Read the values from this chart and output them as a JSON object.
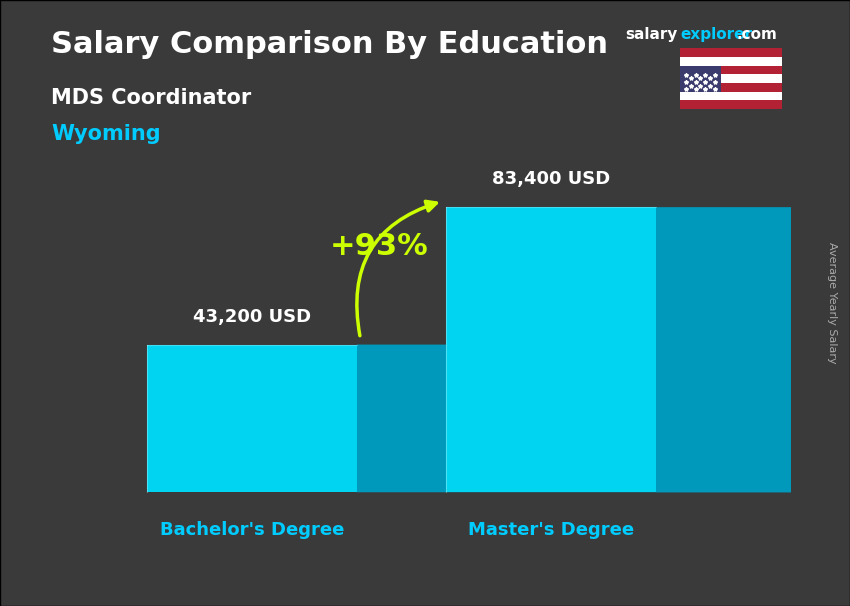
{
  "title_main": "Salary Comparison By Education",
  "title_sub": "MDS Coordinator",
  "title_location": "Wyoming",
  "site_text_salary": "salary",
  "site_text_explorer": "explorer",
  "site_text_com": ".com",
  "categories": [
    "Bachelor's Degree",
    "Master's Degree"
  ],
  "values": [
    43200,
    83400
  ],
  "value_labels": [
    "43,200 USD",
    "83,400 USD"
  ],
  "percent_change": "+93%",
  "bar_face_color": "#00d4f0",
  "bar_top_color": "#00aacc",
  "bar_side_color": "#0099bb",
  "bar_width": 0.28,
  "bar_depth": 0.04,
  "background_color": "#1a1a2e",
  "title_color": "#ffffff",
  "subtitle_color": "#ffffff",
  "location_color": "#00ccff",
  "label_color": "#ffffff",
  "xlabel_color": "#00ccff",
  "percent_color": "#ccff00",
  "arrow_color": "#ccff00",
  "side_label_color": "#aaaaaa",
  "side_label_text": "Average Yearly Salary",
  "ymax": 100000,
  "axis_bg_alpha": 0.45
}
